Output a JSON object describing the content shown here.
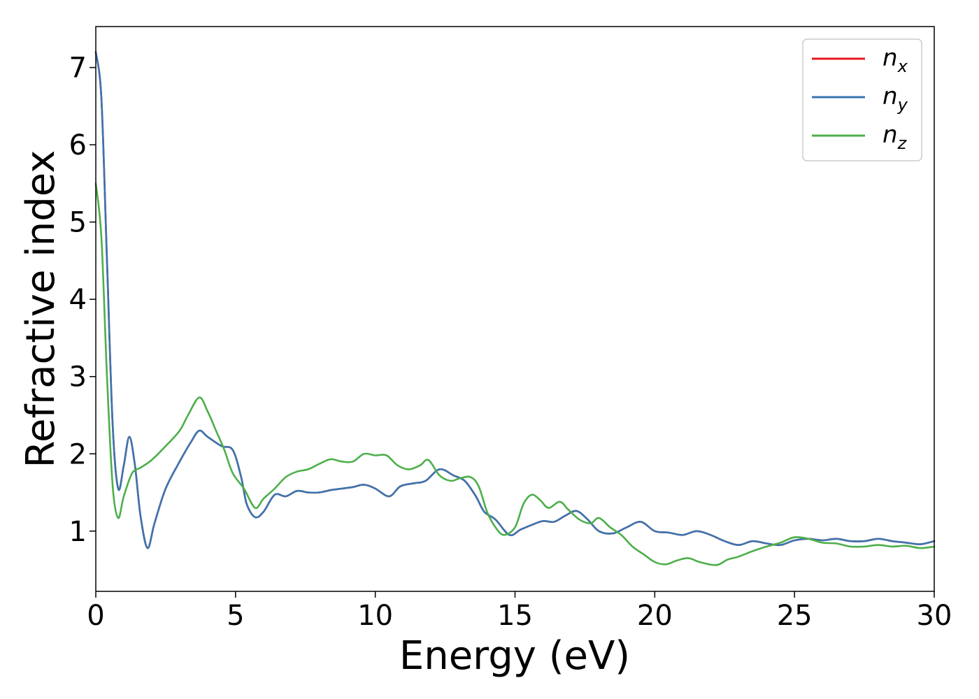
{
  "chart_data": {
    "type": "line",
    "title": "",
    "xlabel": "Energy (eV)",
    "ylabel": "Refractive index",
    "xlim": [
      0,
      30
    ],
    "ylim": [
      0.22,
      7.53
    ],
    "xticks": [
      "0",
      "5",
      "10",
      "15",
      "20",
      "25",
      "30"
    ],
    "yticks": [
      "1",
      "2",
      "3",
      "4",
      "5",
      "6",
      "7"
    ],
    "grid": false,
    "legend_position": "top-right",
    "series": [
      {
        "name": "n",
        "subscript": "x",
        "color": "#e41a1c",
        "points": [
          [
            0,
            7.2
          ],
          [
            0.2,
            6.6
          ],
          [
            0.4,
            4.5
          ],
          [
            0.6,
            2.4
          ],
          [
            0.8,
            1.55
          ],
          [
            1.0,
            1.85
          ],
          [
            1.2,
            2.22
          ],
          [
            1.4,
            1.85
          ],
          [
            1.6,
            1.2
          ],
          [
            1.85,
            0.78
          ],
          [
            2.1,
            1.1
          ],
          [
            2.5,
            1.55
          ],
          [
            3.0,
            1.9
          ],
          [
            3.4,
            2.15
          ],
          [
            3.7,
            2.3
          ],
          [
            4.0,
            2.22
          ],
          [
            4.5,
            2.1
          ],
          [
            4.9,
            2.05
          ],
          [
            5.2,
            1.7
          ],
          [
            5.4,
            1.35
          ],
          [
            5.7,
            1.18
          ],
          [
            6.0,
            1.25
          ],
          [
            6.4,
            1.47
          ],
          [
            6.8,
            1.45
          ],
          [
            7.2,
            1.52
          ],
          [
            7.6,
            1.5
          ],
          [
            8.0,
            1.5
          ],
          [
            8.4,
            1.53
          ],
          [
            8.8,
            1.55
          ],
          [
            9.2,
            1.57
          ],
          [
            9.6,
            1.6
          ],
          [
            10.0,
            1.55
          ],
          [
            10.5,
            1.45
          ],
          [
            10.9,
            1.58
          ],
          [
            11.4,
            1.62
          ],
          [
            11.8,
            1.65
          ],
          [
            12.3,
            1.8
          ],
          [
            12.8,
            1.72
          ],
          [
            13.2,
            1.65
          ],
          [
            13.6,
            1.45
          ],
          [
            13.9,
            1.25
          ],
          [
            14.3,
            1.15
          ],
          [
            14.8,
            0.95
          ],
          [
            15.2,
            1.02
          ],
          [
            15.6,
            1.08
          ],
          [
            16.0,
            1.13
          ],
          [
            16.4,
            1.12
          ],
          [
            16.8,
            1.2
          ],
          [
            17.2,
            1.26
          ],
          [
            17.6,
            1.15
          ],
          [
            18.0,
            1.0
          ],
          [
            18.5,
            0.97
          ],
          [
            19.0,
            1.05
          ],
          [
            19.5,
            1.12
          ],
          [
            20.0,
            1.0
          ],
          [
            20.5,
            0.98
          ],
          [
            21.0,
            0.95
          ],
          [
            21.5,
            1.0
          ],
          [
            22.0,
            0.95
          ],
          [
            22.5,
            0.87
          ],
          [
            23.0,
            0.82
          ],
          [
            23.5,
            0.87
          ],
          [
            24.0,
            0.84
          ],
          [
            24.5,
            0.82
          ],
          [
            25.0,
            0.88
          ],
          [
            25.5,
            0.9
          ],
          [
            26.0,
            0.88
          ],
          [
            26.5,
            0.9
          ],
          [
            27.0,
            0.87
          ],
          [
            27.5,
            0.87
          ],
          [
            28.0,
            0.9
          ],
          [
            28.5,
            0.87
          ],
          [
            29.0,
            0.85
          ],
          [
            29.5,
            0.83
          ],
          [
            30.0,
            0.87
          ]
        ]
      },
      {
        "name": "n",
        "subscript": "y",
        "color": "#3a75b0",
        "points": [
          [
            0,
            7.2
          ],
          [
            0.2,
            6.6
          ],
          [
            0.4,
            4.5
          ],
          [
            0.6,
            2.4
          ],
          [
            0.8,
            1.55
          ],
          [
            1.0,
            1.85
          ],
          [
            1.2,
            2.22
          ],
          [
            1.4,
            1.85
          ],
          [
            1.6,
            1.2
          ],
          [
            1.85,
            0.78
          ],
          [
            2.1,
            1.1
          ],
          [
            2.5,
            1.55
          ],
          [
            3.0,
            1.9
          ],
          [
            3.4,
            2.15
          ],
          [
            3.7,
            2.3
          ],
          [
            4.0,
            2.22
          ],
          [
            4.5,
            2.1
          ],
          [
            4.9,
            2.05
          ],
          [
            5.2,
            1.7
          ],
          [
            5.4,
            1.35
          ],
          [
            5.7,
            1.18
          ],
          [
            6.0,
            1.25
          ],
          [
            6.4,
            1.47
          ],
          [
            6.8,
            1.45
          ],
          [
            7.2,
            1.52
          ],
          [
            7.6,
            1.5
          ],
          [
            8.0,
            1.5
          ],
          [
            8.4,
            1.53
          ],
          [
            8.8,
            1.55
          ],
          [
            9.2,
            1.57
          ],
          [
            9.6,
            1.6
          ],
          [
            10.0,
            1.55
          ],
          [
            10.5,
            1.45
          ],
          [
            10.9,
            1.58
          ],
          [
            11.4,
            1.62
          ],
          [
            11.8,
            1.65
          ],
          [
            12.3,
            1.8
          ],
          [
            12.8,
            1.72
          ],
          [
            13.2,
            1.65
          ],
          [
            13.6,
            1.45
          ],
          [
            13.9,
            1.25
          ],
          [
            14.3,
            1.15
          ],
          [
            14.8,
            0.95
          ],
          [
            15.2,
            1.02
          ],
          [
            15.6,
            1.08
          ],
          [
            16.0,
            1.13
          ],
          [
            16.4,
            1.12
          ],
          [
            16.8,
            1.2
          ],
          [
            17.2,
            1.26
          ],
          [
            17.6,
            1.15
          ],
          [
            18.0,
            1.0
          ],
          [
            18.5,
            0.97
          ],
          [
            19.0,
            1.05
          ],
          [
            19.5,
            1.12
          ],
          [
            20.0,
            1.0
          ],
          [
            20.5,
            0.98
          ],
          [
            21.0,
            0.95
          ],
          [
            21.5,
            1.0
          ],
          [
            22.0,
            0.95
          ],
          [
            22.5,
            0.87
          ],
          [
            23.0,
            0.82
          ],
          [
            23.5,
            0.87
          ],
          [
            24.0,
            0.84
          ],
          [
            24.5,
            0.82
          ],
          [
            25.0,
            0.88
          ],
          [
            25.5,
            0.9
          ],
          [
            26.0,
            0.88
          ],
          [
            26.5,
            0.9
          ],
          [
            27.0,
            0.87
          ],
          [
            27.5,
            0.87
          ],
          [
            28.0,
            0.9
          ],
          [
            28.5,
            0.87
          ],
          [
            29.0,
            0.85
          ],
          [
            29.5,
            0.83
          ],
          [
            30.0,
            0.87
          ]
        ]
      },
      {
        "name": "n",
        "subscript": "z",
        "color": "#4daf4a",
        "points": [
          [
            0,
            5.5
          ],
          [
            0.2,
            4.8
          ],
          [
            0.4,
            3.0
          ],
          [
            0.6,
            1.6
          ],
          [
            0.8,
            1.17
          ],
          [
            1.0,
            1.45
          ],
          [
            1.3,
            1.75
          ],
          [
            1.6,
            1.82
          ],
          [
            2.0,
            1.92
          ],
          [
            2.5,
            2.1
          ],
          [
            3.0,
            2.3
          ],
          [
            3.3,
            2.5
          ],
          [
            3.7,
            2.73
          ],
          [
            4.0,
            2.55
          ],
          [
            4.3,
            2.3
          ],
          [
            4.6,
            2.05
          ],
          [
            4.9,
            1.75
          ],
          [
            5.3,
            1.55
          ],
          [
            5.7,
            1.3
          ],
          [
            6.0,
            1.42
          ],
          [
            6.4,
            1.55
          ],
          [
            6.8,
            1.7
          ],
          [
            7.2,
            1.77
          ],
          [
            7.6,
            1.8
          ],
          [
            8.0,
            1.87
          ],
          [
            8.4,
            1.93
          ],
          [
            8.8,
            1.9
          ],
          [
            9.2,
            1.9
          ],
          [
            9.6,
            2.0
          ],
          [
            10.0,
            1.98
          ],
          [
            10.4,
            1.98
          ],
          [
            10.8,
            1.85
          ],
          [
            11.2,
            1.8
          ],
          [
            11.6,
            1.85
          ],
          [
            11.9,
            1.92
          ],
          [
            12.3,
            1.72
          ],
          [
            12.7,
            1.65
          ],
          [
            13.0,
            1.68
          ],
          [
            13.4,
            1.7
          ],
          [
            13.7,
            1.58
          ],
          [
            14.0,
            1.25
          ],
          [
            14.3,
            1.05
          ],
          [
            14.6,
            0.95
          ],
          [
            15.0,
            1.05
          ],
          [
            15.3,
            1.35
          ],
          [
            15.6,
            1.47
          ],
          [
            15.9,
            1.4
          ],
          [
            16.2,
            1.3
          ],
          [
            16.6,
            1.38
          ],
          [
            16.9,
            1.28
          ],
          [
            17.3,
            1.15
          ],
          [
            17.7,
            1.1
          ],
          [
            18.0,
            1.17
          ],
          [
            18.4,
            1.05
          ],
          [
            18.8,
            0.95
          ],
          [
            19.2,
            0.8
          ],
          [
            19.6,
            0.7
          ],
          [
            20.0,
            0.6
          ],
          [
            20.4,
            0.57
          ],
          [
            20.8,
            0.62
          ],
          [
            21.2,
            0.65
          ],
          [
            21.6,
            0.6
          ],
          [
            22.2,
            0.56
          ],
          [
            22.6,
            0.63
          ],
          [
            23.0,
            0.67
          ],
          [
            23.5,
            0.74
          ],
          [
            24.0,
            0.8
          ],
          [
            24.5,
            0.85
          ],
          [
            25.0,
            0.92
          ],
          [
            25.5,
            0.9
          ],
          [
            26.0,
            0.85
          ],
          [
            26.5,
            0.84
          ],
          [
            27.0,
            0.8
          ],
          [
            27.5,
            0.8
          ],
          [
            28.0,
            0.82
          ],
          [
            28.5,
            0.8
          ],
          [
            29.0,
            0.81
          ],
          [
            29.5,
            0.78
          ],
          [
            30.0,
            0.8
          ]
        ]
      }
    ]
  }
}
